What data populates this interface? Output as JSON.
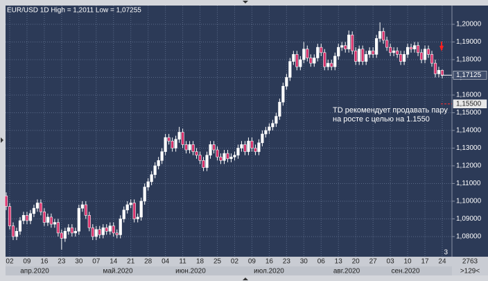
{
  "chart_data": {
    "type": "candlestick",
    "title": "EUR/USD 1D High = 1,2011 Low = 1,07255",
    "annotation": [
      "TD рекомендует продавать пару",
      "на росте с целью на 1.1550"
    ],
    "categories": [
      null,
      "02",
      null,
      null,
      null,
      null,
      "09",
      null,
      null,
      null,
      null,
      "16",
      null,
      null,
      null,
      null,
      "23",
      null,
      null,
      null,
      null,
      "30",
      null,
      null,
      null,
      null,
      "07",
      null,
      null,
      null,
      null,
      "14",
      null,
      null,
      null,
      null,
      "21",
      null,
      null,
      null,
      null,
      "28",
      null,
      null,
      null,
      null,
      "04",
      null,
      null,
      null,
      null,
      "11",
      null,
      null,
      null,
      null,
      "18",
      null,
      null,
      null,
      null,
      "25",
      null,
      null,
      null,
      null,
      "02",
      null,
      null,
      null,
      null,
      "09",
      null,
      null,
      null,
      null,
      "16",
      null,
      null,
      null,
      null,
      "23",
      null,
      null,
      null,
      null,
      "30",
      null,
      null,
      null,
      null,
      "06",
      null,
      null,
      null,
      null,
      "13",
      null,
      null,
      null,
      null,
      "20",
      null,
      null,
      null,
      null,
      "27",
      null,
      null,
      null,
      null,
      "03",
      null,
      null,
      null,
      null,
      "10",
      null,
      null,
      null,
      null,
      "17",
      null,
      null,
      null,
      null,
      "24"
    ],
    "months": [
      "апр.2020",
      "май.2020",
      "июн.2020",
      "июл.2020",
      "авг.2020",
      "сен.2020"
    ],
    "open": [
      1.103,
      1.097,
      1.086,
      1.08,
      1.083,
      1.089,
      1.092,
      1.089,
      1.093,
      1.096,
      1.099,
      1.094,
      1.088,
      1.091,
      1.087,
      1.088,
      1.082,
      1.079,
      1.083,
      1.085,
      1.082,
      1.083,
      1.096,
      1.098,
      1.092,
      1.085,
      1.08,
      1.084,
      1.081,
      1.085,
      1.083,
      1.086,
      1.082,
      1.081,
      1.09,
      1.095,
      1.098,
      1.099,
      1.09,
      1.091,
      1.1,
      1.108,
      1.111,
      1.115,
      1.12,
      1.123,
      1.128,
      1.136,
      1.134,
      1.13,
      1.135,
      1.139,
      1.132,
      1.129,
      1.132,
      1.128,
      1.126,
      1.123,
      1.119,
      1.126,
      1.132,
      1.129,
      1.125,
      1.123,
      1.127,
      1.124,
      1.125,
      1.126,
      1.13,
      1.132,
      1.128,
      1.134,
      1.13,
      1.128,
      1.133,
      1.138,
      1.14,
      1.142,
      1.144,
      1.148,
      1.156,
      1.165,
      1.17,
      1.179,
      1.183,
      1.176,
      1.18,
      1.186,
      1.181,
      1.178,
      1.181,
      1.187,
      1.184,
      1.176,
      1.178,
      1.176,
      1.182,
      1.187,
      1.188,
      1.186,
      1.194,
      1.185,
      1.179,
      1.186,
      1.179,
      1.183,
      1.185,
      1.183,
      1.192,
      1.196,
      1.191,
      1.187,
      1.184,
      1.185,
      1.183,
      1.179,
      1.183,
      1.187,
      1.186,
      1.188,
      1.184,
      1.18,
      1.186,
      1.183,
      1.178,
      1.172,
      1.174
    ],
    "high": [
      1.105,
      1.099,
      1.088,
      1.085,
      1.091,
      1.094,
      1.094,
      1.095,
      1.098,
      1.101,
      1.101,
      1.096,
      1.093,
      1.093,
      1.09,
      1.09,
      1.084,
      1.085,
      1.087,
      1.087,
      1.085,
      1.098,
      1.1,
      1.1,
      1.094,
      1.087,
      1.086,
      1.086,
      1.087,
      1.087,
      1.088,
      1.088,
      1.084,
      1.092,
      1.097,
      1.1,
      1.101,
      1.101,
      1.093,
      1.102,
      1.11,
      1.113,
      1.117,
      1.122,
      1.125,
      1.13,
      1.138,
      1.138,
      1.136,
      1.137,
      1.142,
      1.141,
      1.134,
      1.134,
      1.134,
      1.13,
      1.128,
      1.125,
      1.128,
      1.134,
      1.134,
      1.131,
      1.127,
      1.129,
      1.129,
      1.127,
      1.128,
      1.132,
      1.134,
      1.134,
      1.136,
      1.136,
      1.132,
      1.135,
      1.14,
      1.142,
      1.144,
      1.146,
      1.15,
      1.158,
      1.167,
      1.172,
      1.181,
      1.185,
      1.185,
      1.182,
      1.19,
      1.188,
      1.183,
      1.183,
      1.189,
      1.189,
      1.186,
      1.18,
      1.18,
      1.184,
      1.189,
      1.19,
      1.19,
      1.1965,
      1.196,
      1.187,
      1.188,
      1.188,
      1.185,
      1.187,
      1.187,
      1.194,
      1.2011,
      1.198,
      1.193,
      1.189,
      1.187,
      1.187,
      1.185,
      1.185,
      1.189,
      1.189,
      1.19,
      1.19,
      1.186,
      1.188,
      1.188,
      1.185,
      1.18,
      1.176,
      1.1745
    ],
    "low": [
      1.095,
      1.084,
      1.078,
      1.078,
      1.081,
      1.087,
      1.087,
      1.087,
      1.091,
      1.094,
      1.092,
      1.086,
      1.086,
      1.085,
      1.085,
      1.08,
      1.0726,
      1.077,
      1.081,
      1.08,
      1.08,
      1.081,
      1.094,
      1.09,
      1.083,
      1.078,
      1.078,
      1.079,
      1.079,
      1.081,
      1.081,
      1.08,
      1.079,
      1.079,
      1.088,
      1.093,
      1.096,
      1.088,
      1.088,
      1.089,
      1.098,
      1.106,
      1.109,
      1.113,
      1.118,
      1.121,
      1.126,
      1.132,
      1.128,
      1.128,
      1.133,
      1.13,
      1.127,
      1.127,
      1.126,
      1.124,
      1.121,
      1.117,
      1.117,
      1.124,
      1.127,
      1.123,
      1.121,
      1.121,
      1.122,
      1.122,
      1.123,
      1.124,
      1.128,
      1.126,
      1.126,
      1.128,
      1.126,
      1.126,
      1.131,
      1.136,
      1.138,
      1.14,
      1.142,
      1.146,
      1.154,
      1.163,
      1.168,
      1.177,
      1.174,
      1.174,
      1.178,
      1.179,
      1.176,
      1.176,
      1.179,
      1.182,
      1.174,
      1.174,
      1.174,
      1.174,
      1.18,
      1.185,
      1.184,
      1.184,
      1.183,
      1.177,
      1.177,
      1.177,
      1.177,
      1.181,
      1.181,
      1.181,
      1.19,
      1.189,
      1.185,
      1.182,
      1.182,
      1.181,
      1.177,
      1.177,
      1.181,
      1.184,
      1.184,
      1.182,
      1.178,
      1.178,
      1.181,
      1.176,
      1.17,
      1.17,
      1.1695
    ],
    "close": [
      1.097,
      1.086,
      1.08,
      1.083,
      1.089,
      1.092,
      1.089,
      1.093,
      1.096,
      1.099,
      1.094,
      1.088,
      1.091,
      1.087,
      1.088,
      1.082,
      1.079,
      1.083,
      1.085,
      1.082,
      1.083,
      1.096,
      1.098,
      1.092,
      1.085,
      1.08,
      1.084,
      1.081,
      1.085,
      1.083,
      1.086,
      1.082,
      1.081,
      1.09,
      1.095,
      1.098,
      1.099,
      1.09,
      1.091,
      1.1,
      1.108,
      1.111,
      1.115,
      1.12,
      1.123,
      1.128,
      1.136,
      1.134,
      1.13,
      1.135,
      1.139,
      1.132,
      1.129,
      1.132,
      1.128,
      1.126,
      1.123,
      1.119,
      1.126,
      1.132,
      1.129,
      1.125,
      1.123,
      1.127,
      1.124,
      1.125,
      1.126,
      1.13,
      1.132,
      1.128,
      1.134,
      1.13,
      1.128,
      1.133,
      1.138,
      1.14,
      1.142,
      1.144,
      1.148,
      1.156,
      1.165,
      1.17,
      1.179,
      1.183,
      1.176,
      1.18,
      1.186,
      1.181,
      1.178,
      1.181,
      1.187,
      1.184,
      1.176,
      1.178,
      1.176,
      1.182,
      1.187,
      1.188,
      1.186,
      1.194,
      1.185,
      1.179,
      1.186,
      1.179,
      1.183,
      1.185,
      1.183,
      1.192,
      1.196,
      1.191,
      1.187,
      1.184,
      1.185,
      1.183,
      1.179,
      1.183,
      1.187,
      1.186,
      1.188,
      1.184,
      1.18,
      1.186,
      1.183,
      1.178,
      1.172,
      1.174,
      1.1712
    ],
    "up_color": "#ffffff",
    "down_color": "#d9306a",
    "ylim": [
      1.0686,
      1.2106
    ],
    "yticks": [
      {
        "value": 1.08,
        "label": "1,08000"
      },
      {
        "value": 1.09,
        "label": "1,09000"
      },
      {
        "value": 1.1,
        "label": "1,10000"
      },
      {
        "value": 1.11,
        "label": "1,11000"
      },
      {
        "value": 1.12,
        "label": "1,12000"
      },
      {
        "value": 1.13,
        "label": "1,13000"
      },
      {
        "value": 1.14,
        "label": "1,14000"
      },
      {
        "value": 1.15,
        "label": "1,15000"
      },
      {
        "value": 1.16,
        "label": "1,16000"
      },
      {
        "value": 1.17,
        "label": "1,17000"
      },
      {
        "value": 1.18,
        "label": "1,18000"
      },
      {
        "value": 1.19,
        "label": "1,19000"
      },
      {
        "value": 1.2,
        "label": "1,20000"
      }
    ],
    "price_markers": [
      {
        "value": 1.17125,
        "label": "1,17125"
      },
      {
        "value": 1.155,
        "label": "1,15500"
      }
    ],
    "grid": true,
    "corner_count": "3",
    "footer_right": [
      "2763",
      ">129<"
    ]
  }
}
